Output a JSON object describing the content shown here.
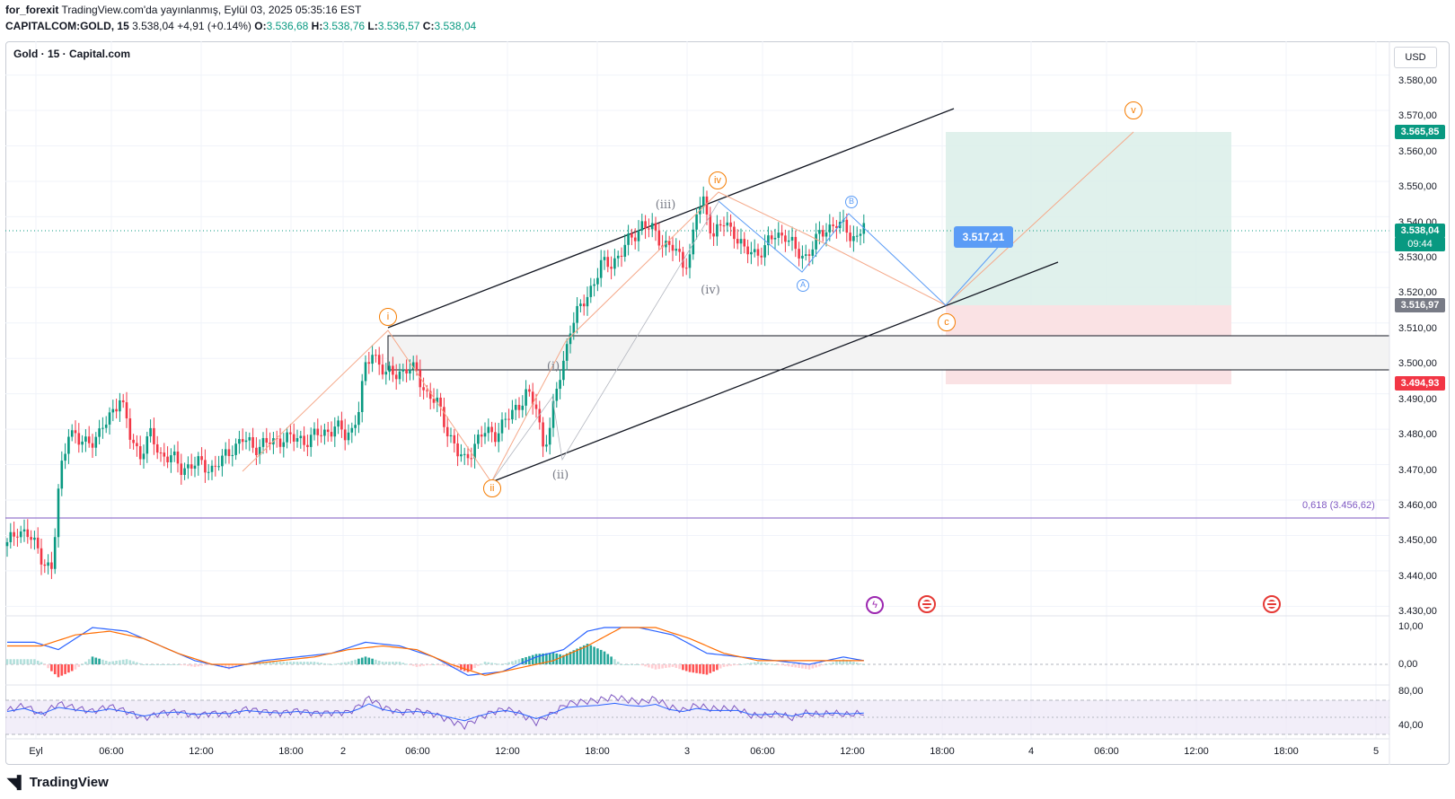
{
  "publish": {
    "author": "for_forexit",
    "text": "TradingView.com'da yayınlanmış, Eylül 03, 2025 05:35:16 EST"
  },
  "symbol_line": {
    "symbol": "CAPITALCOM:GOLD, 15",
    "last": "3.538,04",
    "change": "+4,91 (+0.14%)",
    "o_label": "O:",
    "o": "3.536,68",
    "h_label": "H:",
    "h": "3.538,76",
    "l_label": "L:",
    "l": "3.536,57",
    "c_label": "C:",
    "c": "3.538,04"
  },
  "chart_title": "Gold · 15 · Capital.com",
  "currency": "USD",
  "price_axis": [
    "3.580,00",
    "3.570,00",
    "3.560,00",
    "3.550,00",
    "3.540,00",
    "3.530,00",
    "3.520,00",
    "3.510,00",
    "3.500,00",
    "3.490,00",
    "3.480,00",
    "3.470,00",
    "3.460,00",
    "3.450,00",
    "3.440,00",
    "3.430,00"
  ],
  "price_tags": {
    "target": "3.565,85",
    "current": "3.538,04",
    "countdown": "09:44",
    "entry": "3.516,97",
    "stop": "3.494,93"
  },
  "macd_axis": [
    "10,00",
    "0,00"
  ],
  "rsi_axis": [
    "80,00",
    "40,00"
  ],
  "time_axis": [
    "Eyl",
    "06:00",
    "12:00",
    "18:00",
    "2",
    "06:00",
    "12:00",
    "18:00",
    "3",
    "06:00",
    "12:00",
    "18:00",
    "4",
    "06:00",
    "12:00",
    "18:00",
    "5"
  ],
  "fib": "0,618 (3.456,62)",
  "waves": {
    "i": "i",
    "ii": "ii",
    "iii_iv": "iv",
    "v": "v",
    "c_mark": "c",
    "sub_iii": "(iii)",
    "sub_iv": "(iv)",
    "sub_i": "(i)",
    "sub_ii": "(ii)",
    "a": "A",
    "b": "B"
  },
  "entry_label": "3.517,21",
  "footer": "TradingView",
  "colors": {
    "up": "#089981",
    "down": "#f23645",
    "target_zone": "#dbefe9",
    "stop_zone": "#f9dfe1",
    "fib_line": "#7e57c2",
    "wave_orange": "#f57c00",
    "wave_blue": "#5b9cf6"
  },
  "chart_data": {
    "type": "candlestick",
    "interval": "15",
    "ylim": [
      3430,
      3585
    ],
    "close_path": [
      [
        0,
        3447
      ],
      [
        3,
        3452
      ],
      [
        6,
        3450
      ],
      [
        9,
        3446
      ],
      [
        12,
        3441
      ],
      [
        13,
        3440
      ],
      [
        14,
        3450
      ],
      [
        15,
        3462
      ],
      [
        16,
        3470
      ],
      [
        18,
        3480
      ],
      [
        21,
        3476
      ],
      [
        24,
        3477
      ],
      [
        27,
        3478
      ],
      [
        30,
        3484
      ],
      [
        33,
        3489
      ],
      [
        36,
        3478
      ],
      [
        39,
        3473
      ],
      [
        42,
        3478
      ],
      [
        45,
        3473
      ],
      [
        48,
        3472
      ],
      [
        51,
        3469
      ],
      [
        54,
        3470
      ],
      [
        57,
        3470
      ],
      [
        60,
        3469
      ],
      [
        63,
        3471
      ],
      [
        66,
        3475
      ],
      [
        69,
        3477
      ],
      [
        72,
        3475
      ],
      [
        75,
        3476
      ],
      [
        78,
        3476
      ],
      [
        81,
        3478
      ],
      [
        84,
        3477
      ],
      [
        87,
        3477
      ],
      [
        90,
        3478
      ],
      [
        93,
        3479
      ],
      [
        96,
        3481
      ],
      [
        99,
        3478
      ],
      [
        101,
        3480
      ],
      [
        103,
        3486
      ],
      [
        105,
        3497
      ],
      [
        107,
        3502
      ],
      [
        109,
        3499
      ],
      [
        111,
        3495
      ],
      [
        114,
        3496
      ],
      [
        117,
        3497
      ],
      [
        120,
        3496
      ],
      [
        123,
        3490
      ],
      [
        126,
        3487
      ],
      [
        129,
        3480
      ],
      [
        132,
        3473
      ],
      [
        134,
        3471
      ],
      [
        137,
        3476
      ],
      [
        140,
        3479
      ],
      [
        143,
        3479
      ],
      [
        146,
        3482
      ],
      [
        149,
        3486
      ],
      [
        152,
        3490
      ],
      [
        155,
        3486
      ],
      [
        157,
        3476
      ],
      [
        159,
        3480
      ],
      [
        161,
        3491
      ],
      [
        163,
        3499
      ],
      [
        165,
        3509
      ],
      [
        168,
        3514
      ],
      [
        171,
        3520
      ],
      [
        174,
        3526
      ],
      [
        177,
        3527
      ],
      [
        180,
        3530
      ],
      [
        183,
        3534
      ],
      [
        186,
        3538
      ],
      [
        189,
        3536
      ],
      [
        192,
        3533
      ],
      [
        195,
        3531
      ],
      [
        198,
        3527
      ],
      [
        200,
        3529
      ],
      [
        202,
        3541
      ],
      [
        204,
        3544
      ],
      [
        207,
        3535
      ],
      [
        210,
        3538
      ],
      [
        213,
        3536
      ],
      [
        216,
        3530
      ],
      [
        219,
        3530
      ],
      [
        222,
        3531
      ],
      [
        225,
        3535
      ],
      [
        228,
        3535
      ],
      [
        231,
        3530
      ],
      [
        234,
        3529
      ],
      [
        237,
        3533
      ],
      [
        240,
        3537
      ],
      [
        243,
        3538
      ],
      [
        246,
        3536
      ],
      [
        249,
        3534
      ],
      [
        251,
        3538
      ]
    ],
    "macd_path": [
      [
        0,
        6
      ],
      [
        8,
        6
      ],
      [
        15,
        4
      ],
      [
        25,
        10
      ],
      [
        35,
        9
      ],
      [
        45,
        5
      ],
      [
        55,
        1
      ],
      [
        65,
        -1
      ],
      [
        75,
        1
      ],
      [
        85,
        2
      ],
      [
        95,
        3
      ],
      [
        105,
        6
      ],
      [
        115,
        5
      ],
      [
        125,
        2
      ],
      [
        135,
        -3
      ],
      [
        145,
        -2
      ],
      [
        155,
        2
      ],
      [
        163,
        4
      ],
      [
        170,
        9
      ],
      [
        175,
        10
      ],
      [
        185,
        10
      ],
      [
        195,
        8
      ],
      [
        205,
        3
      ],
      [
        215,
        2
      ],
      [
        225,
        1
      ],
      [
        235,
        0
      ],
      [
        245,
        2
      ],
      [
        251,
        1
      ]
    ],
    "signal_path": [
      [
        0,
        5
      ],
      [
        10,
        5
      ],
      [
        20,
        8
      ],
      [
        30,
        9
      ],
      [
        40,
        7
      ],
      [
        50,
        3
      ],
      [
        60,
        0
      ],
      [
        70,
        0
      ],
      [
        80,
        1
      ],
      [
        90,
        2
      ],
      [
        100,
        4
      ],
      [
        110,
        5
      ],
      [
        120,
        4
      ],
      [
        130,
        0
      ],
      [
        140,
        -3
      ],
      [
        150,
        -1
      ],
      [
        160,
        1
      ],
      [
        170,
        5
      ],
      [
        180,
        10
      ],
      [
        190,
        10
      ],
      [
        200,
        7
      ],
      [
        210,
        3
      ],
      [
        220,
        1
      ],
      [
        230,
        1
      ],
      [
        240,
        1
      ],
      [
        251,
        1
      ]
    ],
    "rsi_path": [
      [
        0,
        58
      ],
      [
        5,
        64
      ],
      [
        10,
        53
      ],
      [
        15,
        66
      ],
      [
        20,
        61
      ],
      [
        25,
        57
      ],
      [
        30,
        63
      ],
      [
        35,
        57
      ],
      [
        40,
        49
      ],
      [
        45,
        55
      ],
      [
        50,
        57
      ],
      [
        55,
        52
      ],
      [
        60,
        55
      ],
      [
        65,
        54
      ],
      [
        70,
        60
      ],
      [
        75,
        57
      ],
      [
        80,
        55
      ],
      [
        85,
        58
      ],
      [
        90,
        55
      ],
      [
        100,
        56
      ],
      [
        103,
        63
      ],
      [
        106,
        73
      ],
      [
        110,
        62
      ],
      [
        115,
        56
      ],
      [
        120,
        58
      ],
      [
        125,
        54
      ],
      [
        130,
        46
      ],
      [
        134,
        40
      ],
      [
        138,
        49
      ],
      [
        142,
        56
      ],
      [
        146,
        60
      ],
      [
        150,
        55
      ],
      [
        155,
        44
      ],
      [
        160,
        55
      ],
      [
        164,
        66
      ],
      [
        168,
        68
      ],
      [
        173,
        70
      ],
      [
        178,
        74
      ],
      [
        182,
        70
      ],
      [
        186,
        68
      ],
      [
        190,
        72
      ],
      [
        194,
        62
      ],
      [
        198,
        58
      ],
      [
        202,
        64
      ],
      [
        206,
        60
      ],
      [
        210,
        60
      ],
      [
        214,
        60
      ],
      [
        218,
        52
      ],
      [
        222,
        52
      ],
      [
        226,
        54
      ],
      [
        230,
        49
      ],
      [
        234,
        55
      ],
      [
        238,
        53
      ],
      [
        242,
        55
      ],
      [
        246,
        53
      ],
      [
        251,
        55
      ]
    ]
  }
}
